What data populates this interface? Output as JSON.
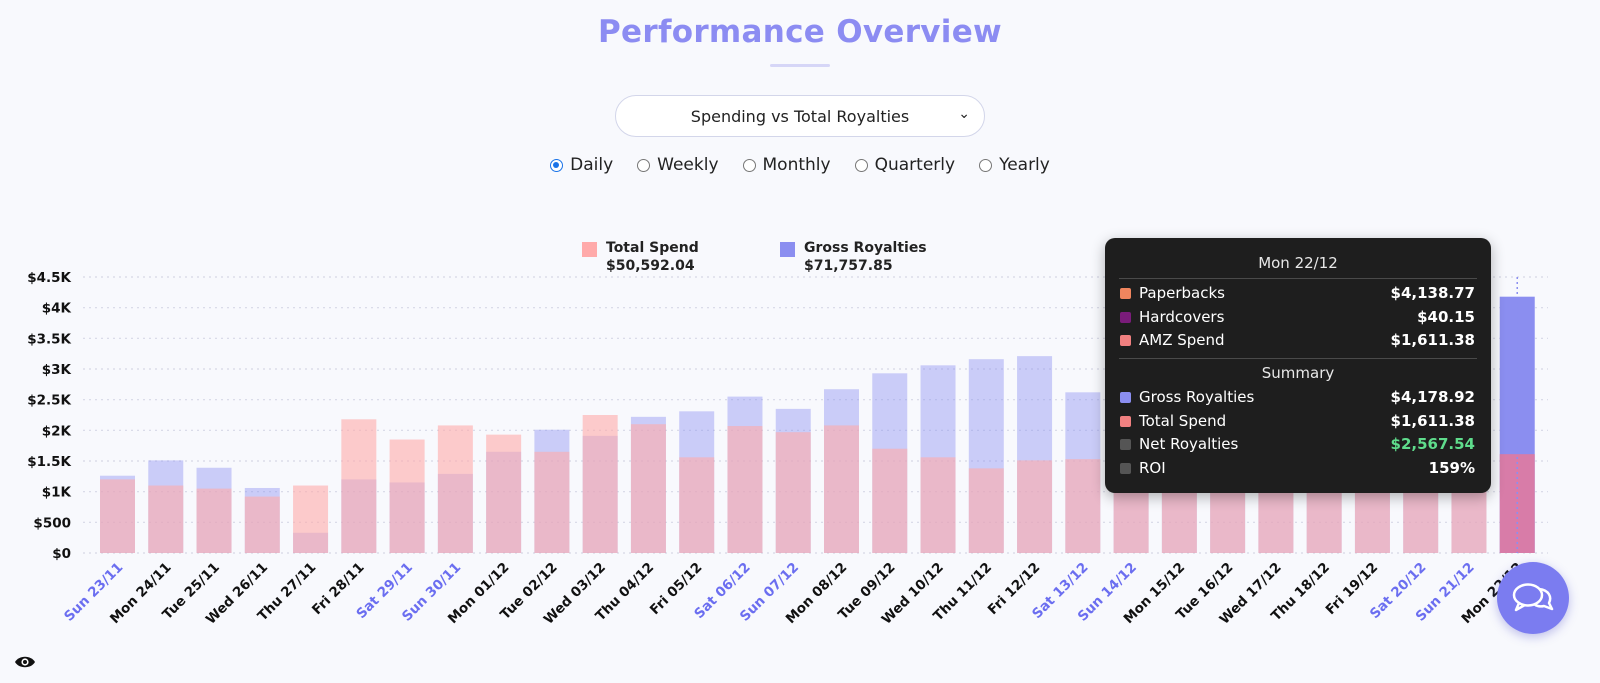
{
  "header": {
    "title": "Performance Overview"
  },
  "report_select": {
    "value": "Spending vs Total Royalties"
  },
  "period_options": [
    {
      "label": "Daily",
      "checked": true
    },
    {
      "label": "Weekly",
      "checked": false
    },
    {
      "label": "Monthly",
      "checked": false
    },
    {
      "label": "Quarterly",
      "checked": false
    },
    {
      "label": "Yearly",
      "checked": false
    }
  ],
  "legend": [
    {
      "name": "Total Spend",
      "value": "$50,592.04",
      "color": "#ffaaaa"
    },
    {
      "name": "Gross Royalties",
      "value": "$71,757.85",
      "color": "#8b8ef0"
    }
  ],
  "tooltip": {
    "title": "Mon 22/12",
    "rows": [
      {
        "label": "Paperbacks",
        "value": "$4,138.77",
        "color": "#f0855e"
      },
      {
        "label": "Hardcovers",
        "value": "$40.15",
        "color": "#7a1c7a"
      },
      {
        "label": "AMZ Spend",
        "value": "$1,611.38",
        "color": "#f08080"
      }
    ],
    "summary_label": "Summary",
    "summary": [
      {
        "label": "Gross Royalties",
        "value": "$4,178.92",
        "color": "#8b8ef0",
        "positive": false
      },
      {
        "label": "Total Spend",
        "value": "$1,611.38",
        "color": "#f08080",
        "positive": false
      },
      {
        "label": "Net Royalties",
        "value": "$2,567.54",
        "color": "#555555",
        "positive": true
      },
      {
        "label": "ROI",
        "value": "159%",
        "color": "#555555",
        "positive": false
      }
    ]
  },
  "chart_data": {
    "type": "bar",
    "ylim": [
      0,
      4500
    ],
    "yticks": [
      {
        "value": 0,
        "label": "$0"
      },
      {
        "value": 500,
        "label": "$500"
      },
      {
        "value": 1000,
        "label": "$1K"
      },
      {
        "value": 1500,
        "label": "$1.5K"
      },
      {
        "value": 2000,
        "label": "$2K"
      },
      {
        "value": 2500,
        "label": "$2.5K"
      },
      {
        "value": 3000,
        "label": "$3K"
      },
      {
        "value": 3500,
        "label": "$3.5K"
      },
      {
        "value": 4000,
        "label": "$4K"
      },
      {
        "value": 4500,
        "label": "$4.5K"
      }
    ],
    "grid": true,
    "categories": [
      "Sun 23/11",
      "Mon 24/11",
      "Tue 25/11",
      "Wed 26/11",
      "Thu 27/11",
      "Fri 28/11",
      "Sat 29/11",
      "Sun 30/11",
      "Mon 01/12",
      "Tue 02/12",
      "Wed 03/12",
      "Thu 04/12",
      "Fri 05/12",
      "Sat 06/12",
      "Sun 07/12",
      "Mon 08/12",
      "Tue 09/12",
      "Wed 10/12",
      "Thu 11/12",
      "Fri 12/12",
      "Sat 13/12",
      "Sun 14/12",
      "Mon 15/12",
      "Tue 16/12",
      "Wed 17/12",
      "Thu 18/12",
      "Fri 19/12",
      "Sat 20/12",
      "Sun 21/12",
      "Mon 22/12"
    ],
    "weekend": [
      true,
      false,
      false,
      false,
      false,
      false,
      true,
      true,
      false,
      false,
      false,
      false,
      false,
      true,
      true,
      false,
      false,
      false,
      false,
      false,
      true,
      true,
      false,
      false,
      false,
      false,
      false,
      true,
      true,
      false
    ],
    "series": [
      {
        "name": "Total Spend",
        "color": "#ffaaaa",
        "values": [
          1200,
          1100,
          1050,
          920,
          1100,
          2180,
          1850,
          2080,
          1930,
          1650,
          2250,
          2100,
          1560,
          2070,
          1970,
          2080,
          1700,
          1560,
          1380,
          1510,
          1530,
          1550,
          1550,
          1550,
          1550,
          1550,
          1550,
          1600,
          1650,
          1611.38
        ]
      },
      {
        "name": "Gross Royalties",
        "color": "#8b8ef0",
        "values": [
          1260,
          1510,
          1390,
          1060,
          330,
          1200,
          1150,
          1290,
          1650,
          2010,
          1910,
          2220,
          2310,
          2550,
          2350,
          2670,
          2930,
          3060,
          3160,
          3210,
          2620,
          2800,
          2900,
          2950,
          3000,
          3050,
          3100,
          3150,
          3170,
          4178.92
        ]
      }
    ],
    "highlight_index": 29
  }
}
